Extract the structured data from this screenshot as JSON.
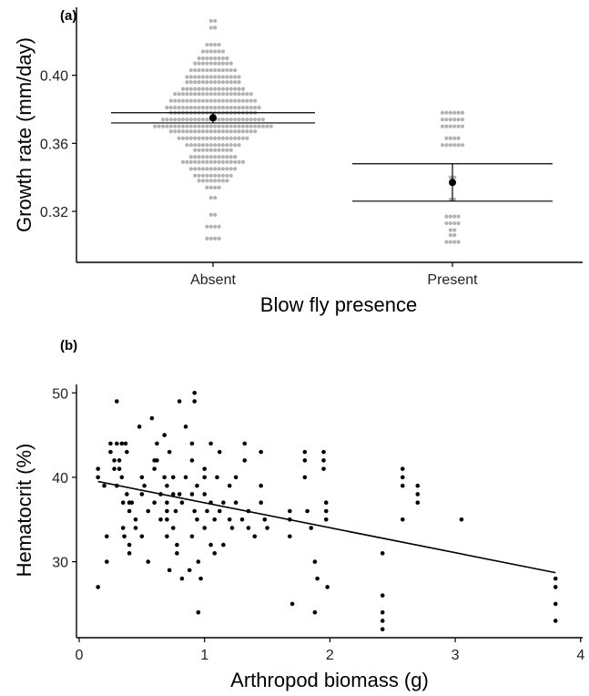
{
  "chart_data": [
    {
      "panel": "(a)",
      "type": "scatter",
      "subtype": "beeswarm with mean and confidence interval",
      "xlabel": "Blow fly presence",
      "ylabel": "Growth rate (mm/day)",
      "categories": [
        "Absent",
        "Present"
      ],
      "ylim": [
        0.29,
        0.44
      ],
      "yticks": [
        "0.32",
        "0.36",
        "0.40"
      ],
      "point_color": "#b3b3b3",
      "mean_color": "#000000",
      "groups": [
        {
          "category": "Absent",
          "mean": 0.375,
          "ci_low": 0.372,
          "ci_high": 0.378,
          "bins": [
            {
              "y": 0.304,
              "n": 4
            },
            {
              "y": 0.311,
              "n": 4
            },
            {
              "y": 0.318,
              "n": 2
            },
            {
              "y": 0.328,
              "n": 2
            },
            {
              "y": 0.334,
              "n": 4
            },
            {
              "y": 0.338,
              "n": 8
            },
            {
              "y": 0.341,
              "n": 10
            },
            {
              "y": 0.345,
              "n": 12
            },
            {
              "y": 0.349,
              "n": 16
            },
            {
              "y": 0.352,
              "n": 12
            },
            {
              "y": 0.356,
              "n": 10
            },
            {
              "y": 0.359,
              "n": 14
            },
            {
              "y": 0.363,
              "n": 18
            },
            {
              "y": 0.367,
              "n": 22
            },
            {
              "y": 0.37,
              "n": 30
            },
            {
              "y": 0.374,
              "n": 26
            },
            {
              "y": 0.378,
              "n": 22
            },
            {
              "y": 0.381,
              "n": 24
            },
            {
              "y": 0.385,
              "n": 22
            },
            {
              "y": 0.389,
              "n": 20
            },
            {
              "y": 0.392,
              "n": 16
            },
            {
              "y": 0.396,
              "n": 14
            },
            {
              "y": 0.399,
              "n": 14
            },
            {
              "y": 0.403,
              "n": 12
            },
            {
              "y": 0.407,
              "n": 10
            },
            {
              "y": 0.41,
              "n": 8
            },
            {
              "y": 0.414,
              "n": 6
            },
            {
              "y": 0.418,
              "n": 4
            },
            {
              "y": 0.428,
              "n": 2
            },
            {
              "y": 0.432,
              "n": 2
            }
          ]
        },
        {
          "category": "Present",
          "mean": 0.337,
          "ci_low": 0.326,
          "ci_high": 0.348,
          "bins": [
            {
              "y": 0.302,
              "n": 4
            },
            {
              "y": 0.306,
              "n": 2
            },
            {
              "y": 0.309,
              "n": 2
            },
            {
              "y": 0.313,
              "n": 4
            },
            {
              "y": 0.317,
              "n": 4
            },
            {
              "y": 0.327,
              "n": 2
            },
            {
              "y": 0.34,
              "n": 2
            },
            {
              "y": 0.359,
              "n": 6
            },
            {
              "y": 0.363,
              "n": 4
            },
            {
              "y": 0.37,
              "n": 6
            },
            {
              "y": 0.374,
              "n": 6
            },
            {
              "y": 0.378,
              "n": 6
            }
          ]
        }
      ]
    },
    {
      "panel": "(b)",
      "type": "scatter",
      "xlabel": "Arthropod biomass (g)",
      "ylabel": "Hematocrit (%)",
      "xlim": [
        0,
        4
      ],
      "ylim": [
        21,
        51
      ],
      "xticks": [
        "0",
        "1",
        "2",
        "3",
        "4"
      ],
      "yticks": [
        "30",
        "40",
        "50"
      ],
      "point_color": "#000000",
      "trendline": {
        "x": [
          0.15,
          3.8
        ],
        "y": [
          39.5,
          28.7
        ]
      },
      "points": [
        [
          0.15,
          41
        ],
        [
          0.15,
          40
        ],
        [
          0.15,
          27
        ],
        [
          0.2,
          39
        ],
        [
          0.22,
          33
        ],
        [
          0.22,
          30
        ],
        [
          0.25,
          44
        ],
        [
          0.25,
          43
        ],
        [
          0.28,
          42
        ],
        [
          0.28,
          41
        ],
        [
          0.3,
          49
        ],
        [
          0.3,
          44
        ],
        [
          0.3,
          39
        ],
        [
          0.32,
          42
        ],
        [
          0.32,
          41
        ],
        [
          0.34,
          44
        ],
        [
          0.34,
          40
        ],
        [
          0.35,
          37
        ],
        [
          0.35,
          34
        ],
        [
          0.36,
          33
        ],
        [
          0.37,
          44
        ],
        [
          0.38,
          43
        ],
        [
          0.38,
          38
        ],
        [
          0.4,
          37
        ],
        [
          0.4,
          36
        ],
        [
          0.4,
          32
        ],
        [
          0.4,
          31
        ],
        [
          0.42,
          37
        ],
        [
          0.45,
          35
        ],
        [
          0.45,
          34
        ],
        [
          0.48,
          46
        ],
        [
          0.5,
          40
        ],
        [
          0.5,
          38
        ],
        [
          0.5,
          33
        ],
        [
          0.52,
          39
        ],
        [
          0.55,
          36
        ],
        [
          0.55,
          30
        ],
        [
          0.58,
          47
        ],
        [
          0.6,
          42
        ],
        [
          0.6,
          41
        ],
        [
          0.6,
          37
        ],
        [
          0.62,
          44
        ],
        [
          0.62,
          42
        ],
        [
          0.65,
          38
        ],
        [
          0.65,
          35
        ],
        [
          0.68,
          45
        ],
        [
          0.68,
          40
        ],
        [
          0.7,
          39
        ],
        [
          0.7,
          37
        ],
        [
          0.7,
          36
        ],
        [
          0.7,
          35
        ],
        [
          0.7,
          33
        ],
        [
          0.72,
          43
        ],
        [
          0.72,
          29
        ],
        [
          0.75,
          40
        ],
        [
          0.75,
          38
        ],
        [
          0.75,
          34
        ],
        [
          0.77,
          36
        ],
        [
          0.78,
          32
        ],
        [
          0.78,
          31
        ],
        [
          0.8,
          49
        ],
        [
          0.8,
          38
        ],
        [
          0.82,
          37
        ],
        [
          0.82,
          28
        ],
        [
          0.85,
          46
        ],
        [
          0.85,
          40
        ],
        [
          0.88,
          29
        ],
        [
          0.9,
          44
        ],
        [
          0.9,
          42
        ],
        [
          0.9,
          38
        ],
        [
          0.9,
          33
        ],
        [
          0.92,
          50
        ],
        [
          0.92,
          49
        ],
        [
          0.92,
          36
        ],
        [
          0.94,
          39
        ],
        [
          0.94,
          35
        ],
        [
          0.95,
          30
        ],
        [
          0.95,
          24
        ],
        [
          0.97,
          28
        ],
        [
          1.0,
          41
        ],
        [
          1.0,
          40
        ],
        [
          1.0,
          38
        ],
        [
          1.0,
          34
        ],
        [
          1.02,
          36
        ],
        [
          1.05,
          44
        ],
        [
          1.05,
          37
        ],
        [
          1.05,
          32
        ],
        [
          1.08,
          35
        ],
        [
          1.08,
          31
        ],
        [
          1.1,
          40
        ],
        [
          1.12,
          43
        ],
        [
          1.12,
          36
        ],
        [
          1.15,
          37
        ],
        [
          1.15,
          32
        ],
        [
          1.2,
          39
        ],
        [
          1.2,
          35
        ],
        [
          1.22,
          34
        ],
        [
          1.25,
          40
        ],
        [
          1.25,
          37
        ],
        [
          1.3,
          35
        ],
        [
          1.32,
          44
        ],
        [
          1.32,
          42
        ],
        [
          1.35,
          36
        ],
        [
          1.35,
          34
        ],
        [
          1.4,
          33
        ],
        [
          1.45,
          43
        ],
        [
          1.45,
          39
        ],
        [
          1.45,
          37
        ],
        [
          1.48,
          35
        ],
        [
          1.5,
          34
        ],
        [
          1.68,
          36
        ],
        [
          1.68,
          35
        ],
        [
          1.68,
          33
        ],
        [
          1.7,
          25
        ],
        [
          1.8,
          43
        ],
        [
          1.8,
          42
        ],
        [
          1.8,
          40
        ],
        [
          1.82,
          36
        ],
        [
          1.85,
          34
        ],
        [
          1.88,
          30
        ],
        [
          1.88,
          24
        ],
        [
          1.9,
          28
        ],
        [
          1.95,
          43
        ],
        [
          1.95,
          42
        ],
        [
          1.95,
          41
        ],
        [
          1.97,
          37
        ],
        [
          1.97,
          36
        ],
        [
          1.97,
          35
        ],
        [
          1.98,
          27
        ],
        [
          2.42,
          31
        ],
        [
          2.42,
          26
        ],
        [
          2.42,
          24
        ],
        [
          2.42,
          23
        ],
        [
          2.42,
          22
        ],
        [
          2.58,
          41
        ],
        [
          2.58,
          40
        ],
        [
          2.58,
          39
        ],
        [
          2.58,
          35
        ],
        [
          2.7,
          39
        ],
        [
          2.7,
          38
        ],
        [
          2.7,
          37
        ],
        [
          3.05,
          35
        ],
        [
          3.8,
          28
        ],
        [
          3.8,
          27
        ],
        [
          3.8,
          25
        ],
        [
          3.8,
          23
        ]
      ]
    }
  ]
}
